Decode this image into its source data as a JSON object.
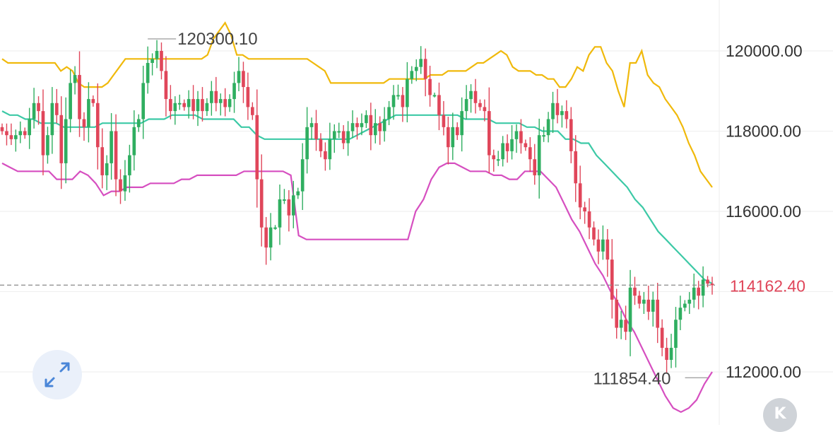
{
  "chart_data": {
    "type": "candlestick",
    "y_axis": {
      "range": [
        111000,
        121200
      ],
      "ticks": [
        "120000.00",
        "118000.00",
        "116000.00",
        "114000.00",
        "112000.00"
      ],
      "tick_values": [
        120000,
        118000,
        116000,
        114000,
        112000
      ],
      "grid": true,
      "position": "right"
    },
    "current_price": {
      "value": 114162.4,
      "label": "114162.40",
      "color": "#e0465a",
      "line_style": "dashed"
    },
    "extremes": {
      "high": {
        "value": 120300.1,
        "label": "120300.10",
        "index": 32
      },
      "low": {
        "value": 111854.4,
        "label": "111854.40",
        "index": 155
      }
    },
    "colors": {
      "up": "#2fae60",
      "down": "#e0465a",
      "upper_band": "#f0b90b",
      "middle_band": "#3cc9a6",
      "lower_band": "#d64fc0",
      "grid": "#eeeeee"
    },
    "close": [
      118000,
      117900,
      117800,
      117900,
      118000,
      117900,
      118300,
      118700,
      118500,
      117400,
      117900,
      118700,
      118400,
      117200,
      118300,
      119200,
      119400,
      118300,
      118100,
      118800,
      118700,
      117600,
      116900,
      117200,
      118000,
      116800,
      116500,
      116900,
      117400,
      118100,
      118300,
      119200,
      119700,
      119800,
      120000,
      119500,
      118800,
      118500,
      118700,
      118700,
      118600,
      118800,
      118500,
      118800,
      118500,
      118700,
      119000,
      118700,
      118800,
      118600,
      118800,
      119200,
      119500,
      119100,
      118600,
      118400,
      116800,
      115600,
      115100,
      115600,
      115600,
      116300,
      116300,
      115900,
      116400,
      116500,
      117300,
      118100,
      118200,
      117800,
      117500,
      117300,
      117800,
      118000,
      118000,
      117700,
      118000,
      118200,
      118100,
      118200,
      118400,
      117900,
      118200,
      118000,
      118300,
      118600,
      118900,
      118900,
      118600,
      119300,
      119500,
      119600,
      119800,
      119300,
      118900,
      118900,
      118400,
      118100,
      117600,
      118100,
      117900,
      118500,
      118800,
      119000,
      118700,
      118600,
      118500,
      117400,
      117300,
      117300,
      117700,
      117500,
      117800,
      118000,
      117700,
      117600,
      117300,
      116900,
      117900,
      117900,
      118300,
      118700,
      118400,
      118500,
      118300,
      117500,
      116700,
      116100,
      116000,
      115600,
      115300,
      115000,
      115300,
      114800,
      113800,
      113100,
      113300,
      113000,
      114100,
      113900,
      113700,
      113800,
      113500,
      113800,
      113100,
      112600,
      112300,
      112600,
      113300,
      113600,
      113700,
      113800,
      114100,
      113900,
      114300,
      114200,
      114162
    ],
    "open_start": 118100,
    "upper_band": [
      119800,
      119700,
      119700,
      119700,
      119700,
      119700,
      119700,
      119700,
      119700,
      119700,
      119500,
      119600,
      119500,
      119200,
      119100,
      119100,
      119100,
      119100,
      119200,
      119400,
      119600,
      119800,
      119800,
      119800,
      119800,
      119800,
      119800,
      119800,
      119800,
      119800,
      119800,
      119800,
      119800,
      119800,
      119800,
      119900,
      120300,
      120500,
      120700,
      120400,
      119900,
      119900,
      119800,
      119800,
      119800,
      119800,
      119800,
      119800,
      119800,
      119800,
      119800,
      119800,
      119800,
      119700,
      119600,
      119500,
      119200,
      119200,
      119200,
      119200,
      119200,
      119200,
      119200,
      119200,
      119200,
      119200,
      119300,
      119300,
      119300,
      119300,
      119300,
      119300,
      119300,
      119400,
      119400,
      119400,
      119500,
      119500,
      119500,
      119500,
      119600,
      119700,
      119700,
      119800,
      119900,
      120000,
      119900,
      119600,
      119500,
      119500,
      119500,
      119400,
      119400,
      119300,
      119300,
      119100,
      119100,
      119300,
      119600,
      119500,
      119900,
      120100,
      120100,
      119700,
      119500,
      119000,
      118600,
      119700,
      119700,
      120000,
      119400,
      119200,
      119100,
      118800,
      118600,
      118400,
      118100,
      117700,
      117400,
      117000,
      116800,
      116600
    ],
    "middle_band": [
      118500,
      118400,
      118400,
      118300,
      118300,
      118200,
      118200,
      118200,
      118100,
      118100,
      118100,
      118100,
      118100,
      118200,
      118200,
      118200,
      118200,
      118200,
      118200,
      118300,
      118300,
      118300,
      118400,
      118400,
      118400,
      118400,
      118300,
      118300,
      118300,
      118300,
      118300,
      118100,
      118100,
      117900,
      117800,
      117800,
      117800,
      117800,
      117800,
      117800,
      117800,
      117800,
      117800,
      117800,
      117800,
      117800,
      117900,
      118000,
      118100,
      118200,
      118300,
      118400,
      118400,
      118400,
      118400,
      118400,
      118400,
      118400,
      118400,
      118400,
      118300,
      118300,
      118300,
      118300,
      118200,
      118200,
      118200,
      118200,
      118100,
      118100,
      118000,
      118000,
      118000,
      117800,
      117800,
      117700,
      117700,
      117400,
      117200,
      117000,
      116800,
      116600,
      116300,
      116100,
      115800,
      115500,
      115300,
      115100,
      114900,
      114700,
      114500,
      114300,
      114200
    ],
    "lower_band": [
      117200,
      117100,
      117000,
      117000,
      117000,
      117000,
      117000,
      116800,
      116800,
      116800,
      117000,
      116900,
      116700,
      116400,
      116500,
      116500,
      116600,
      116600,
      116600,
      116700,
      116700,
      116700,
      116700,
      116800,
      116800,
      116900,
      116900,
      116900,
      116900,
      116900,
      116900,
      117000,
      117000,
      117000,
      117000,
      117000,
      117000,
      116900,
      115400,
      115300,
      115300,
      115300,
      115300,
      115300,
      115300,
      115300,
      115300,
      115300,
      115300,
      115300,
      115300,
      115300,
      115300,
      116000,
      116300,
      116800,
      117100,
      117200,
      117200,
      117100,
      117000,
      117000,
      117000,
      116900,
      116900,
      116800,
      116800,
      117000,
      117000,
      117000,
      116800,
      116600,
      116200,
      115800,
      115500,
      115100,
      114700,
      114400,
      114000,
      113700,
      113300,
      113000,
      112600,
      112200,
      111800,
      111400,
      111100,
      111000,
      111100,
      111300,
      111700,
      112000
    ]
  }
}
